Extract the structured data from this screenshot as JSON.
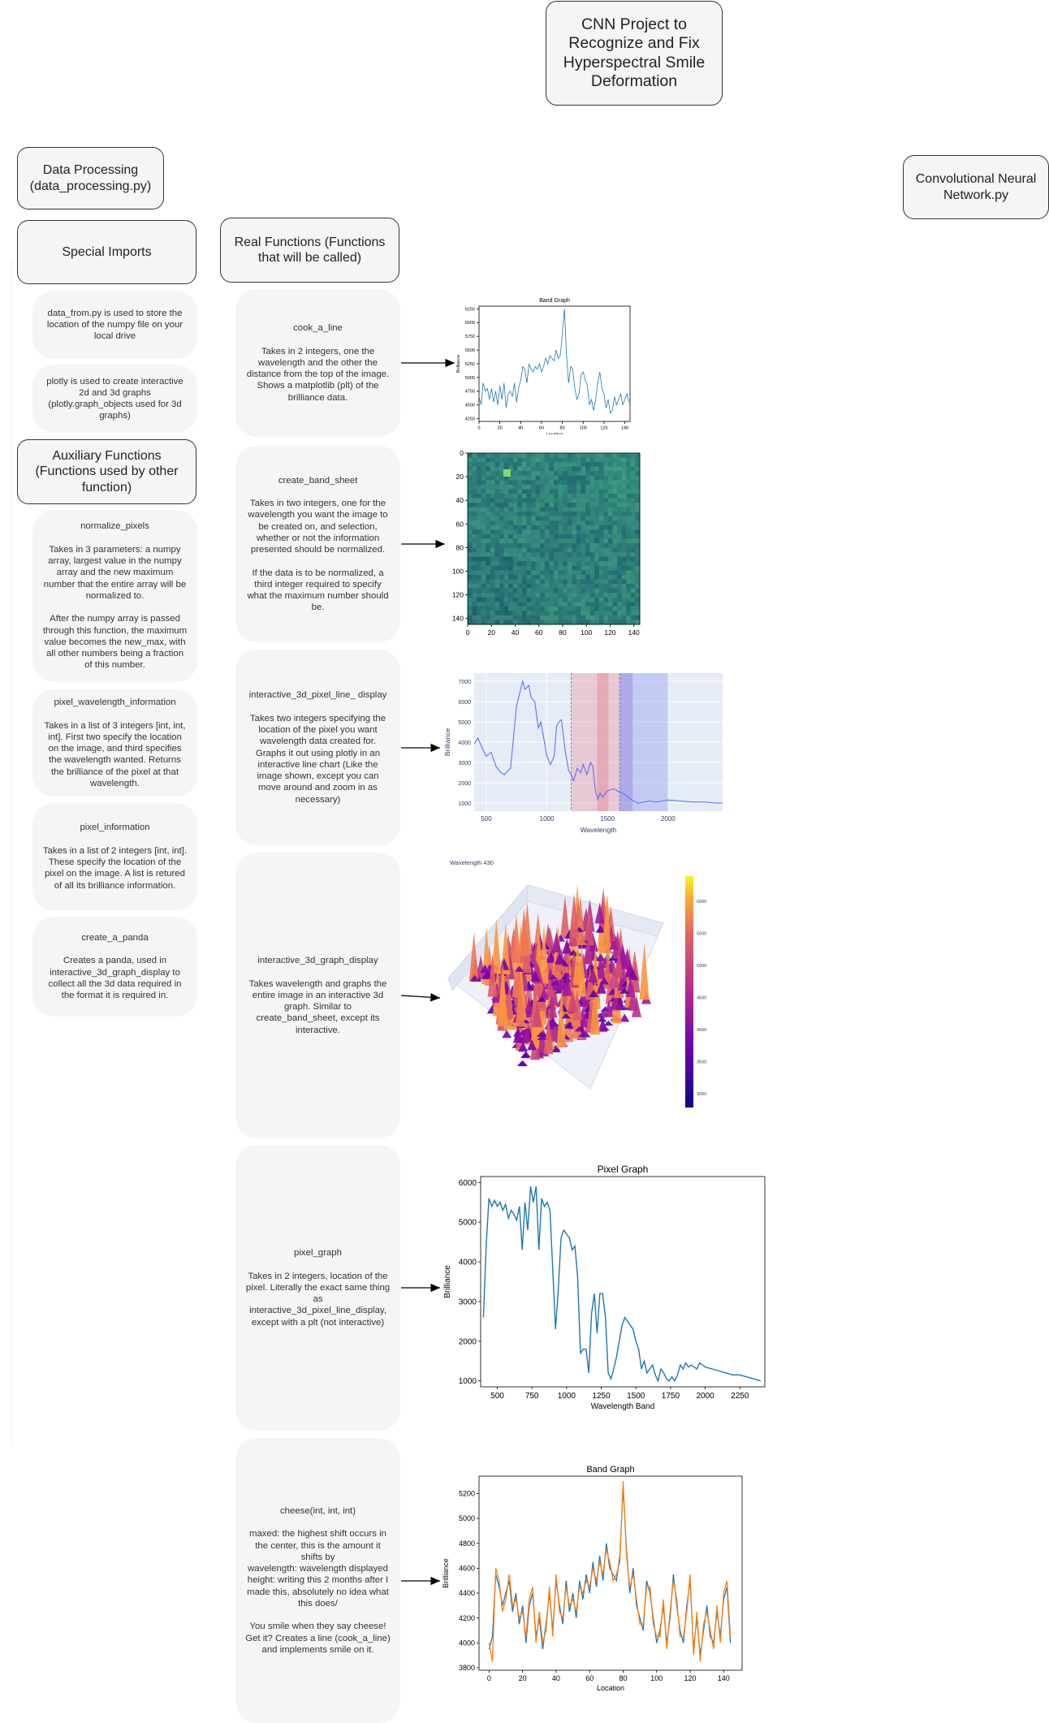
{
  "title": "CNN Project to Recognize and Fix Hyperspectral Smile Deformation",
  "headers": {
    "data_processing": "Data Processing\n(data_processing.py)",
    "cnn": "Convolutional Neural\nNetwork.py",
    "special_imports": "Special Imports",
    "real_functions": "Real Functions (Functions\nthat will be called)",
    "auxiliary_functions": "Auxiliary Functions\n(Functions used by other\nfunction)"
  },
  "special_imports": [
    "data_from.py is used to store the location of the numpy file on your local drive",
    "plotly is used to create interactive 2d and 3d graphs (plotly.graph_objects used for 3d graphs)"
  ],
  "auxiliary_functions": [
    "normalize_pixels\n\nTakes in 3 parameters: a numpy array, largest value in the numpy array and the new maximum number that the entire array will be normalized to.\n\nAfter the numpy array is passed through this function, the maximum value becomes the new_max, with all other numbers being a fraction of this number.",
    "pixel_wavelength_information\n\nTakes in a list of 3 integers [int, int, int]. First two specify the location on the image, and third specifies the wavelength wanted. Returns the brilliance of the pixel at that wavelength.",
    "pixel_information\n\nTakes in a list of 2 integers [int, int]. These specify the location of the pixel on the image. A list is retured of all its brilliance information.",
    "create_a_panda\n\nCreates a panda, used in interactive_3d_graph_display to collect all the 3d data required in the format it is required in."
  ],
  "real_functions": [
    "cook_a_line\n\nTakes in 2 integers, one the wavelength and the other the distance from the top of the image. Shows a matplotlib (plt) of the brilliance data.",
    "create_band_sheet\n\nTakes in two integers, one for the wavelength you want the image to be created on, and selection, whether or not the information presented should be normalized.\n\nIf the data is to be normalized, a third integer required to specify what the maximum number should be.",
    "interactive_3d_pixel_line_ display\n\nTakes two integers specifying the location of the pixel you want wavelength data created for. Graphs it out using plotly in an interactive line chart (Like the image shown, except you can move around and zoom in as necessary)",
    "interactive_3d_graph_display\n\nTakes wavelength and graphs the entire image in an interactive 3d graph. Similar to create_band_sheet, except its interactive.",
    "pixel_graph\n\nTakes in 2 integers, location of the pixel. Literally the exact same thing as interactive_3d_pixel_line_display, except with a plt (not interactive)",
    "cheese(int, int, int)\n\nmaxed: the highest shift occurs in the center, this is the amount it shifts by\nwavelength: wavelength displayed\nheight: writing this 2 months after I made this, absolutely no idea what this does/\n\nYou smile when they say cheese! Get it? Creates a line (cook_a_line) and implements smile on it."
  ],
  "chart_data": [
    {
      "type": "line",
      "title": "Band Graph",
      "xlabel": "Location",
      "ylabel": "Brilliance",
      "xlim": [
        0,
        145
      ],
      "ylim": [
        4200,
        6300
      ],
      "xticks": [
        "0",
        "20",
        "40",
        "60",
        "80",
        "100",
        "120",
        "140"
      ],
      "yticks": [
        "4250",
        "4500",
        "4750",
        "5000",
        "5250",
        "5500",
        "5750",
        "6000",
        "6250"
      ],
      "series": [
        {
          "color": "#1f77b4",
          "x": [
            0,
            2,
            4,
            6,
            8,
            10,
            12,
            14,
            16,
            18,
            20,
            22,
            24,
            26,
            28,
            30,
            32,
            34,
            36,
            38,
            40,
            42,
            44,
            46,
            48,
            50,
            52,
            54,
            56,
            58,
            60,
            62,
            64,
            66,
            68,
            70,
            72,
            74,
            76,
            78,
            80,
            82,
            84,
            86,
            88,
            90,
            92,
            94,
            96,
            98,
            100,
            102,
            104,
            106,
            108,
            110,
            112,
            114,
            116,
            118,
            120,
            122,
            124,
            126,
            128,
            130,
            132,
            134,
            136,
            138,
            140,
            142,
            144
          ],
          "y": [
            4650,
            4500,
            4900,
            4750,
            4800,
            4600,
            4800,
            4550,
            4750,
            4500,
            4850,
            4600,
            4900,
            4450,
            4700,
            4750,
            4650,
            4900,
            4550,
            4800,
            4950,
            5200,
            5150,
            4900,
            5250,
            5150,
            5100,
            5200,
            5150,
            5250,
            5100,
            5200,
            5350,
            5250,
            5400,
            5350,
            5300,
            5500,
            5350,
            5400,
            5800,
            6250,
            5400,
            4900,
            5200,
            5150,
            4800,
            4600,
            4700,
            5050,
            5100,
            4950,
            4850,
            4500,
            4600,
            4400,
            4600,
            4900,
            5100,
            4800,
            4700,
            4450,
            4600,
            4350,
            4400,
            4650,
            4500,
            4600,
            4700,
            4500,
            4600,
            4700,
            4550
          ]
        }
      ]
    },
    {
      "type": "heatmap",
      "xticks": [
        "0",
        "20",
        "40",
        "60",
        "80",
        "100",
        "120",
        "140"
      ],
      "yticks": [
        "0",
        "20",
        "40",
        "60",
        "80",
        "100",
        "120",
        "140"
      ],
      "xlim": [
        0,
        145
      ],
      "ylim": [
        0,
        145
      ],
      "colormap": "viridis"
    },
    {
      "type": "line",
      "xlabel": "Wavelength",
      "ylabel": "Brilliance",
      "xlim": [
        400,
        2450
      ],
      "ylim": [
        600,
        7400
      ],
      "xticks": [
        "500",
        "1000",
        "1500",
        "2000"
      ],
      "yticks": [
        "1000",
        "2000",
        "3000",
        "4000",
        "5000",
        "6000",
        "7000"
      ],
      "series": [
        {
          "color": "#636efa",
          "x": [
            400,
            430,
            460,
            500,
            540,
            580,
            620,
            650,
            680,
            700,
            750,
            780,
            800,
            820,
            850,
            870,
            900,
            930,
            950,
            980,
            1000,
            1030,
            1060,
            1080,
            1100,
            1120,
            1150,
            1180,
            1200,
            1220,
            1250,
            1280,
            1300,
            1330,
            1360,
            1380,
            1400,
            1420,
            1440,
            1460,
            1500,
            1550,
            1600,
            1650,
            1700,
            1750,
            1800,
            1850,
            1900,
            1950,
            2000,
            2100,
            2200,
            2300,
            2400,
            2450
          ],
          "y": [
            3900,
            4200,
            3800,
            3300,
            3500,
            2800,
            2500,
            2400,
            2600,
            2700,
            5800,
            6500,
            7000,
            6600,
            6800,
            6200,
            6000,
            4700,
            5000,
            4000,
            3300,
            2900,
            3300,
            4800,
            5000,
            5100,
            3600,
            2600,
            2400,
            2100,
            2700,
            2500,
            2900,
            2400,
            3000,
            2800,
            1600,
            1200,
            1500,
            1300,
            1600,
            1700,
            1550,
            1400,
            1150,
            1000,
            1050,
            1100,
            1050,
            1100,
            1150,
            1100,
            1050,
            1050,
            1000,
            1000
          ]
        }
      ],
      "shaded_bands": [
        [
          1200,
          1600
        ],
        [
          1600,
          2000
        ]
      ]
    },
    {
      "type": "area",
      "title": "Wavelength 430",
      "colorbar_ticks": [
        "3000",
        "3500",
        "4000",
        "4500",
        "5000",
        "5500",
        "6000"
      ]
    },
    {
      "type": "line",
      "title": "Pixel Graph",
      "xlabel": "Wavelength Band",
      "ylabel": "Brilliance",
      "xlim": [
        380,
        2430
      ],
      "ylim": [
        850,
        6150
      ],
      "xticks": [
        "500",
        "750",
        "1000",
        "1250",
        "1500",
        "1750",
        "2000",
        "2250"
      ],
      "yticks": [
        "1000",
        "2000",
        "3000",
        "4000",
        "5000",
        "6000"
      ],
      "series": [
        {
          "color": "#1f77b4",
          "x": [
            400,
            420,
            440,
            460,
            480,
            500,
            520,
            540,
            560,
            580,
            600,
            620,
            640,
            660,
            680,
            700,
            720,
            740,
            760,
            780,
            800,
            820,
            840,
            860,
            880,
            900,
            920,
            940,
            960,
            980,
            1000,
            1020,
            1040,
            1060,
            1080,
            1100,
            1120,
            1140,
            1160,
            1180,
            1200,
            1220,
            1240,
            1260,
            1280,
            1300,
            1320,
            1340,
            1360,
            1380,
            1400,
            1420,
            1440,
            1460,
            1480,
            1500,
            1520,
            1540,
            1560,
            1580,
            1600,
            1620,
            1640,
            1660,
            1680,
            1700,
            1720,
            1740,
            1760,
            1780,
            1800,
            1820,
            1840,
            1860,
            1880,
            1900,
            1920,
            1940,
            1960,
            1980,
            2000,
            2050,
            2100,
            2150,
            2200,
            2250,
            2300,
            2350,
            2400
          ],
          "y": [
            2600,
            4400,
            5600,
            5400,
            5550,
            5400,
            5500,
            5300,
            5450,
            5100,
            5300,
            5200,
            5050,
            5400,
            4300,
            5500,
            4800,
            5900,
            5500,
            5900,
            4300,
            5600,
            5400,
            5500,
            5300,
            3800,
            2300,
            3300,
            4600,
            4800,
            4700,
            4600,
            4300,
            4400,
            3600,
            1700,
            1800,
            1800,
            1200,
            2700,
            3200,
            2200,
            3200,
            3200,
            2600,
            1200,
            1050,
            1300,
            1600,
            2000,
            2400,
            2600,
            2500,
            2400,
            2300,
            2000,
            1800,
            1300,
            1500,
            1200,
            1300,
            1400,
            1150,
            1000,
            1300,
            1200,
            1050,
            1000,
            1100,
            1000,
            1150,
            1400,
            1300,
            1450,
            1350,
            1400,
            1350,
            1300,
            1450,
            1400,
            1350,
            1300,
            1250,
            1200,
            1150,
            1150,
            1100,
            1050,
            1000
          ]
        }
      ]
    },
    {
      "type": "line",
      "title": "Band Graph",
      "xlabel": "Location",
      "ylabel": "Brilliance",
      "xlim": [
        -6,
        151
      ],
      "ylim": [
        3780,
        5340
      ],
      "xticks": [
        "0",
        "20",
        "40",
        "60",
        "80",
        "100",
        "120",
        "140"
      ],
      "yticks": [
        "3800",
        "4000",
        "4200",
        "4400",
        "4600",
        "4800",
        "5000",
        "5200"
      ],
      "series": [
        {
          "color": "#1f77b4",
          "x": [
            0,
            2,
            4,
            6,
            8,
            10,
            12,
            14,
            16,
            18,
            20,
            22,
            24,
            26,
            28,
            30,
            32,
            34,
            36,
            38,
            40,
            42,
            44,
            46,
            48,
            50,
            52,
            54,
            56,
            58,
            60,
            62,
            64,
            66,
            68,
            70,
            72,
            74,
            76,
            78,
            80,
            82,
            84,
            86,
            88,
            90,
            92,
            94,
            96,
            98,
            100,
            102,
            104,
            106,
            108,
            110,
            112,
            114,
            116,
            118,
            120,
            122,
            124,
            126,
            128,
            130,
            132,
            134,
            136,
            138,
            140,
            142,
            144
          ],
          "y": [
            3950,
            4050,
            4550,
            4450,
            4300,
            4400,
            4500,
            4250,
            4400,
            4150,
            4300,
            4000,
            4300,
            4400,
            4050,
            4200,
            3950,
            4150,
            4400,
            4100,
            4500,
            4300,
            4150,
            4500,
            4250,
            4400,
            4200,
            4500,
            4350,
            4550,
            4400,
            4650,
            4450,
            4700,
            4500,
            4800,
            4600,
            4550,
            4500,
            4700,
            5250,
            4750,
            4400,
            4600,
            4300,
            4200,
            4100,
            4500,
            4400,
            4200,
            4000,
            4100,
            4300,
            4000,
            4200,
            4550,
            4300,
            4100,
            4000,
            4300,
            4500,
            3950,
            4200,
            3900,
            4100,
            4300,
            4050,
            4000,
            4250,
            4050,
            4350,
            4450,
            4000
          ]
        },
        {
          "color": "#ff7f0e",
          "x": [
            0,
            2,
            4,
            6,
            8,
            10,
            12,
            14,
            16,
            18,
            20,
            22,
            24,
            26,
            28,
            30,
            32,
            34,
            36,
            38,
            40,
            42,
            44,
            46,
            48,
            50,
            52,
            54,
            56,
            58,
            60,
            62,
            64,
            66,
            68,
            70,
            72,
            74,
            76,
            78,
            80,
            82,
            84,
            86,
            88,
            90,
            92,
            94,
            96,
            98,
            100,
            102,
            104,
            106,
            108,
            110,
            112,
            114,
            116,
            118,
            120,
            122,
            124,
            126,
            128,
            130,
            132,
            134,
            136,
            138,
            140,
            142,
            144
          ],
          "y": [
            4000,
            3850,
            4600,
            4500,
            4250,
            4350,
            4550,
            4300,
            4350,
            4200,
            4250,
            4050,
            4350,
            4450,
            4000,
            4250,
            4000,
            4100,
            4450,
            4050,
            4550,
            4250,
            4200,
            4450,
            4300,
            4350,
            4250,
            4450,
            4400,
            4500,
            4450,
            4600,
            4500,
            4650,
            4550,
            4750,
            4650,
            4500,
            4550,
            4650,
            5300,
            4700,
            4450,
            4550,
            4350,
            4150,
            4150,
            4450,
            4450,
            4150,
            4050,
            4050,
            4350,
            3950,
            4250,
            4500,
            4350,
            4050,
            4050,
            4250,
            4550,
            3900,
            4250,
            3850,
            4150,
            4250,
            4100,
            3950,
            4300,
            4000,
            4400,
            4500,
            4050
          ]
        }
      ]
    }
  ]
}
